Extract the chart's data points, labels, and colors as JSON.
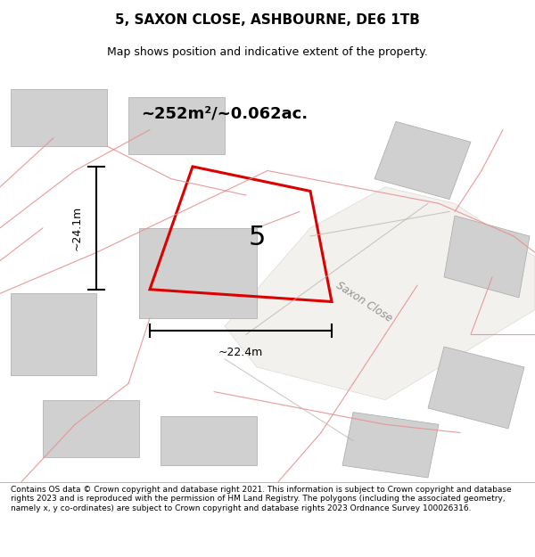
{
  "title": "5, SAXON CLOSE, ASHBOURNE, DE6 1TB",
  "subtitle": "Map shows position and indicative extent of the property.",
  "area_label": "~252m²/~0.062ac.",
  "plot_number": "5",
  "dim_width": "~22.4m",
  "dim_height": "~24.1m",
  "road_label": "Saxon Close",
  "footer": "Contains OS data © Crown copyright and database right 2021. This information is subject to Crown copyright and database rights 2023 and is reproduced with the permission of HM Land Registry. The polygons (including the associated geometry, namely x, y co-ordinates) are subject to Crown copyright and database rights 2023 Ordnance Survey 100026316.",
  "bg_color": "#f0ede8",
  "map_bg": "#ffffff",
  "plot_color": "#dd0000",
  "building_color": "#d0d0d0",
  "road_line_color": "#c0bdb8",
  "pink_line_color": "#e89090",
  "footer_bg": "#ffffff",
  "title_area_bg": "#ffffff"
}
